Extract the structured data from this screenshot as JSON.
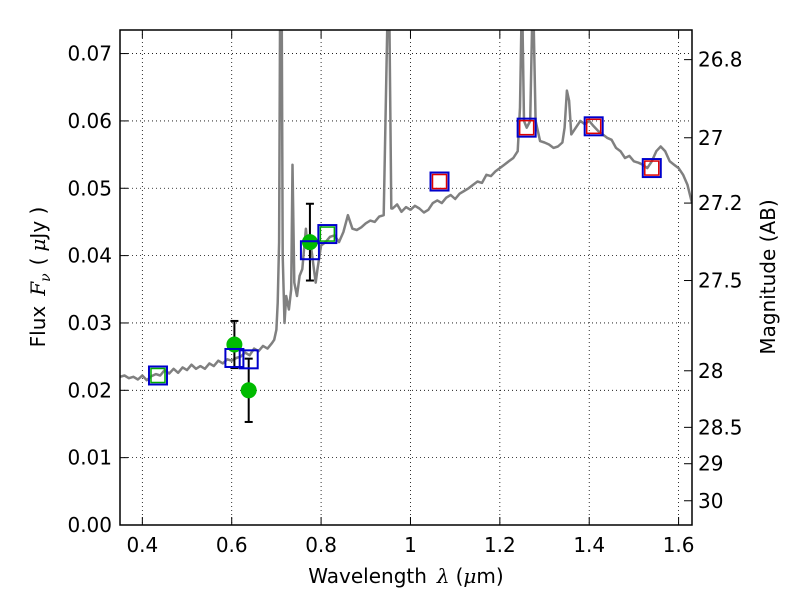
{
  "chart_data": {
    "type": "scatter",
    "xlabel_prefix": "Wavelength",
    "xlabel_symbol": "λ",
    "xlabel_unit_open": "(",
    "xlabel_unit_mu": "μ",
    "xlabel_unit_rest": "m)",
    "ylabel_prefix": "Flux",
    "ylabel_symbol": "F",
    "ylabel_subscript": "ν",
    "ylabel_unit_open": "(",
    "ylabel_unit_mu": "μ",
    "ylabel_unit_rest": "Jy )",
    "y2label": "Magnitude (AB)",
    "xlim": [
      0.35,
      1.63
    ],
    "ylim": [
      0.0,
      0.0735
    ],
    "grid": true,
    "x_ticks": [
      {
        "value": 0.4,
        "label": "0.4"
      },
      {
        "value": 0.6,
        "label": "0.6"
      },
      {
        "value": 0.8,
        "label": "0.8"
      },
      {
        "value": 1.0,
        "label": "1"
      },
      {
        "value": 1.2,
        "label": "1.2"
      },
      {
        "value": 1.4,
        "label": "1.4"
      },
      {
        "value": 1.6,
        "label": "1.6"
      }
    ],
    "y_ticks": [
      {
        "value": 0.0,
        "label": "0.00"
      },
      {
        "value": 0.01,
        "label": "0.01"
      },
      {
        "value": 0.02,
        "label": "0.02"
      },
      {
        "value": 0.03,
        "label": "0.03"
      },
      {
        "value": 0.04,
        "label": "0.04"
      },
      {
        "value": 0.05,
        "label": "0.05"
      },
      {
        "value": 0.06,
        "label": "0.06"
      },
      {
        "value": 0.07,
        "label": "0.07"
      }
    ],
    "y2_ticks": [
      {
        "flux": 0.0691,
        "label": "26.8"
      },
      {
        "flux": 0.0575,
        "label": "27"
      },
      {
        "flux": 0.0478,
        "label": "27.2"
      },
      {
        "flux": 0.0363,
        "label": "27.5"
      },
      {
        "flux": 0.0229,
        "label": "28"
      },
      {
        "flux": 0.0145,
        "label": "28.5"
      },
      {
        "flux": 0.0091,
        "label": "29"
      },
      {
        "flux": 0.0036,
        "label": "30"
      }
    ],
    "series": [
      {
        "name": "model_spectrum",
        "kind": "line",
        "color": "#808080",
        "points": [
          [
            0.35,
            0.022
          ],
          [
            0.36,
            0.0222
          ],
          [
            0.37,
            0.0218
          ],
          [
            0.38,
            0.022
          ],
          [
            0.39,
            0.0216
          ],
          [
            0.4,
            0.0222
          ],
          [
            0.41,
            0.0215
          ],
          [
            0.42,
            0.0221
          ],
          [
            0.43,
            0.0224
          ],
          [
            0.44,
            0.0222
          ],
          [
            0.45,
            0.023
          ],
          [
            0.46,
            0.0225
          ],
          [
            0.47,
            0.0232
          ],
          [
            0.48,
            0.0226
          ],
          [
            0.49,
            0.0234
          ],
          [
            0.5,
            0.023
          ],
          [
            0.51,
            0.0238
          ],
          [
            0.52,
            0.0232
          ],
          [
            0.53,
            0.0236
          ],
          [
            0.54,
            0.0232
          ],
          [
            0.55,
            0.024
          ],
          [
            0.56,
            0.0236
          ],
          [
            0.57,
            0.0244
          ],
          [
            0.58,
            0.024
          ],
          [
            0.59,
            0.0246
          ],
          [
            0.6,
            0.0244
          ],
          [
            0.61,
            0.0248
          ],
          [
            0.62,
            0.025
          ],
          [
            0.63,
            0.0256
          ],
          [
            0.64,
            0.0252
          ],
          [
            0.65,
            0.0262
          ],
          [
            0.66,
            0.0258
          ],
          [
            0.67,
            0.0266
          ],
          [
            0.68,
            0.0262
          ],
          [
            0.69,
            0.027
          ],
          [
            0.695,
            0.0275
          ],
          [
            0.7,
            0.029
          ],
          [
            0.703,
            0.033
          ],
          [
            0.706,
            0.042
          ],
          [
            0.708,
            0.0735
          ],
          [
            0.712,
            0.0735
          ],
          [
            0.714,
            0.04
          ],
          [
            0.718,
            0.03
          ],
          [
            0.722,
            0.034
          ],
          [
            0.728,
            0.032
          ],
          [
            0.733,
            0.035
          ],
          [
            0.736,
            0.0535
          ],
          [
            0.74,
            0.036
          ],
          [
            0.746,
            0.034
          ],
          [
            0.752,
            0.037
          ],
          [
            0.758,
            0.038
          ],
          [
            0.762,
            0.041
          ],
          [
            0.766,
            0.044
          ],
          [
            0.77,
            0.041
          ],
          [
            0.776,
            0.042
          ],
          [
            0.78,
            0.04
          ],
          [
            0.784,
            0.038
          ],
          [
            0.788,
            0.036
          ],
          [
            0.792,
            0.038
          ],
          [
            0.8,
            0.0415
          ],
          [
            0.81,
            0.042
          ],
          [
            0.82,
            0.0428
          ],
          [
            0.83,
            0.043
          ],
          [
            0.84,
            0.042
          ],
          [
            0.85,
            0.0435
          ],
          [
            0.86,
            0.046
          ],
          [
            0.87,
            0.044
          ],
          [
            0.88,
            0.0438
          ],
          [
            0.89,
            0.0442
          ],
          [
            0.9,
            0.0448
          ],
          [
            0.91,
            0.0452
          ],
          [
            0.92,
            0.045
          ],
          [
            0.93,
            0.0458
          ],
          [
            0.94,
            0.046
          ],
          [
            0.948,
            0.0735
          ],
          [
            0.953,
            0.0735
          ],
          [
            0.957,
            0.047
          ],
          [
            0.96,
            0.047
          ],
          [
            0.97,
            0.0476
          ],
          [
            0.98,
            0.0465
          ],
          [
            0.99,
            0.0472
          ],
          [
            1.0,
            0.0468
          ],
          [
            1.01,
            0.0474
          ],
          [
            1.02,
            0.047
          ],
          [
            1.03,
            0.0464
          ],
          [
            1.04,
            0.0468
          ],
          [
            1.05,
            0.0478
          ],
          [
            1.06,
            0.0482
          ],
          [
            1.07,
            0.0478
          ],
          [
            1.08,
            0.0486
          ],
          [
            1.09,
            0.049
          ],
          [
            1.1,
            0.0484
          ],
          [
            1.11,
            0.0492
          ],
          [
            1.12,
            0.0496
          ],
          [
            1.13,
            0.05
          ],
          [
            1.14,
            0.0505
          ],
          [
            1.15,
            0.051
          ],
          [
            1.16,
            0.0508
          ],
          [
            1.17,
            0.052
          ],
          [
            1.18,
            0.0518
          ],
          [
            1.19,
            0.0525
          ],
          [
            1.2,
            0.053
          ],
          [
            1.21,
            0.0535
          ],
          [
            1.22,
            0.054
          ],
          [
            1.23,
            0.0545
          ],
          [
            1.24,
            0.0555
          ],
          [
            1.245,
            0.062
          ],
          [
            1.248,
            0.0735
          ],
          [
            1.251,
            0.0735
          ],
          [
            1.254,
            0.06
          ],
          [
            1.26,
            0.059
          ],
          [
            1.268,
            0.06
          ],
          [
            1.272,
            0.0735
          ],
          [
            1.276,
            0.0735
          ],
          [
            1.28,
            0.06
          ],
          [
            1.29,
            0.057
          ],
          [
            1.3,
            0.0568
          ],
          [
            1.31,
            0.0565
          ],
          [
            1.32,
            0.056
          ],
          [
            1.33,
            0.0562
          ],
          [
            1.34,
            0.0568
          ],
          [
            1.345,
            0.059
          ],
          [
            1.35,
            0.0645
          ],
          [
            1.355,
            0.063
          ],
          [
            1.36,
            0.058
          ],
          [
            1.37,
            0.059
          ],
          [
            1.38,
            0.06
          ],
          [
            1.39,
            0.0595
          ],
          [
            1.4,
            0.06
          ],
          [
            1.41,
            0.0592
          ],
          [
            1.42,
            0.0585
          ],
          [
            1.43,
            0.058
          ],
          [
            1.44,
            0.0575
          ],
          [
            1.45,
            0.0572
          ],
          [
            1.46,
            0.056
          ],
          [
            1.47,
            0.0555
          ],
          [
            1.48,
            0.0545
          ],
          [
            1.49,
            0.0548
          ],
          [
            1.5,
            0.054
          ],
          [
            1.51,
            0.0538
          ],
          [
            1.52,
            0.0535
          ],
          [
            1.53,
            0.053
          ],
          [
            1.54,
            0.054
          ],
          [
            1.55,
            0.0555
          ],
          [
            1.56,
            0.0562
          ],
          [
            1.57,
            0.0555
          ],
          [
            1.58,
            0.054
          ],
          [
            1.59,
            0.0535
          ],
          [
            1.6,
            0.053
          ],
          [
            1.61,
            0.052
          ],
          [
            1.62,
            0.0505
          ],
          [
            1.63,
            0.0478
          ]
        ]
      },
      {
        "name": "observed_photometry",
        "kind": "points_with_errorbars",
        "color": "#00bb00",
        "points": [
          {
            "x": 0.606,
            "y": 0.0268,
            "err": 0.0035
          },
          {
            "x": 0.638,
            "y": 0.02,
            "err": 0.0047
          },
          {
            "x": 0.775,
            "y": 0.042,
            "err": 0.0057
          }
        ]
      },
      {
        "name": "model_band_fluxes",
        "kind": "open_squares",
        "color": "#0000cc",
        "x": [
          0.435,
          0.606,
          0.638,
          0.775,
          0.814,
          1.065,
          1.26,
          1.41,
          1.54
        ],
        "y": [
          0.0222,
          0.0248,
          0.0246,
          0.0408,
          0.0432,
          0.051,
          0.059,
          0.0592,
          0.053
        ]
      },
      {
        "name": "optical_bands",
        "kind": "open_squares",
        "color": "#00aa00",
        "x": [
          0.435,
          0.814
        ],
        "y": [
          0.0222,
          0.0432
        ]
      },
      {
        "name": "infrared_bands",
        "kind": "open_squares",
        "color": "#dd0000",
        "x": [
          1.065,
          1.26,
          1.41,
          1.54
        ],
        "y": [
          0.051,
          0.059,
          0.0592,
          0.053
        ]
      }
    ]
  }
}
